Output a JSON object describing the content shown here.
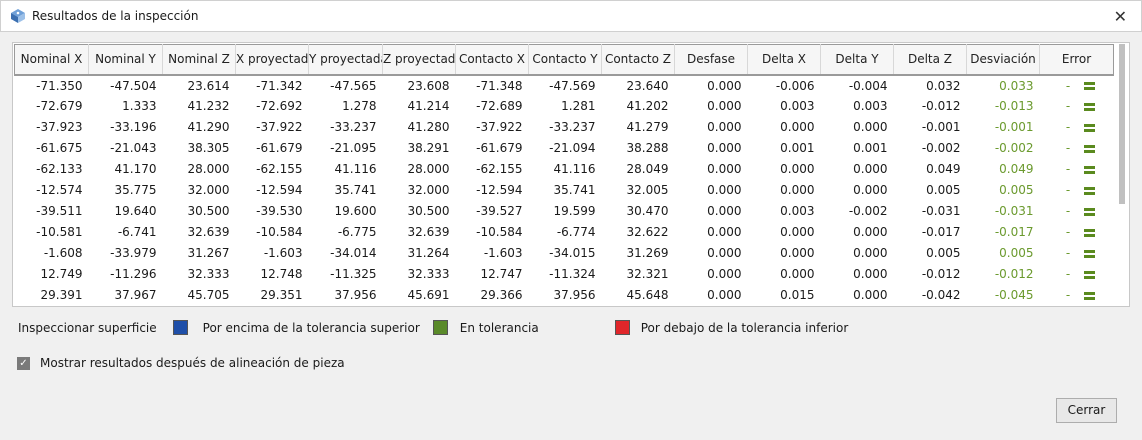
{
  "window": {
    "title": "Resultados de la inspección",
    "close": "✕"
  },
  "table": {
    "headers": [
      "Nominal X",
      "Nominal Y",
      "Nominal Z",
      "X proyectada",
      "Y proyectada",
      "Z proyectada",
      "Contacto X",
      "Contacto Y",
      "Contacto Z",
      "Desfase",
      "Delta X",
      "Delta Y",
      "Delta Z",
      "Desviación",
      "Error"
    ],
    "rows": [
      [
        "-71.350",
        "-47.504",
        "23.614",
        "-71.342",
        "-47.565",
        "23.608",
        "-71.348",
        "-47.569",
        "23.640",
        "0.000",
        "-0.006",
        "-0.004",
        "0.032",
        "0.033",
        "-"
      ],
      [
        "-72.679",
        "1.333",
        "41.232",
        "-72.692",
        "1.278",
        "41.214",
        "-72.689",
        "1.281",
        "41.202",
        "0.000",
        "0.003",
        "0.003",
        "-0.012",
        "-0.013",
        "-"
      ],
      [
        "-37.923",
        "-33.196",
        "41.290",
        "-37.922",
        "-33.237",
        "41.280",
        "-37.922",
        "-33.237",
        "41.279",
        "0.000",
        "0.000",
        "0.000",
        "-0.001",
        "-0.001",
        "-"
      ],
      [
        "-61.675",
        "-21.043",
        "38.305",
        "-61.679",
        "-21.095",
        "38.291",
        "-61.679",
        "-21.094",
        "38.288",
        "0.000",
        "0.001",
        "0.001",
        "-0.002",
        "-0.002",
        "-"
      ],
      [
        "-62.133",
        "41.170",
        "28.000",
        "-62.155",
        "41.116",
        "28.000",
        "-62.155",
        "41.116",
        "28.049",
        "0.000",
        "0.000",
        "0.000",
        "0.049",
        "0.049",
        "-"
      ],
      [
        "-12.574",
        "35.775",
        "32.000",
        "-12.594",
        "35.741",
        "32.000",
        "-12.594",
        "35.741",
        "32.005",
        "0.000",
        "0.000",
        "0.000",
        "0.005",
        "0.005",
        "-"
      ],
      [
        "-39.511",
        "19.640",
        "30.500",
        "-39.530",
        "19.600",
        "30.500",
        "-39.527",
        "19.599",
        "30.470",
        "0.000",
        "0.003",
        "-0.002",
        "-0.031",
        "-0.031",
        "-"
      ],
      [
        "-10.581",
        "-6.741",
        "32.639",
        "-10.584",
        "-6.775",
        "32.639",
        "-10.584",
        "-6.774",
        "32.622",
        "0.000",
        "0.000",
        "0.000",
        "-0.017",
        "-0.017",
        "-"
      ],
      [
        "-1.608",
        "-33.979",
        "31.267",
        "-1.603",
        "-34.014",
        "31.264",
        "-1.603",
        "-34.015",
        "31.269",
        "0.000",
        "0.000",
        "0.000",
        "0.005",
        "0.005",
        "-"
      ],
      [
        "12.749",
        "-11.296",
        "32.333",
        "12.748",
        "-11.325",
        "32.333",
        "12.747",
        "-11.324",
        "32.321",
        "0.000",
        "0.000",
        "0.000",
        "-0.012",
        "-0.012",
        "-"
      ],
      [
        "29.391",
        "37.967",
        "45.705",
        "29.351",
        "37.956",
        "45.691",
        "29.366",
        "37.956",
        "45.648",
        "0.000",
        "0.015",
        "0.000",
        "-0.042",
        "-0.045",
        "-"
      ]
    ]
  },
  "legend": {
    "label": "Inspeccionar superficie",
    "items": [
      {
        "label": "Por encima de la tolerancia superior",
        "color": "#1f4fa8"
      },
      {
        "label": "En tolerancia",
        "color": "#5a8a2a"
      },
      {
        "label": "Por debajo de la tolerancia inferior",
        "color": "#e0262a"
      }
    ]
  },
  "options": {
    "show_after_alignment": "Mostrar resultados después de alineación de pieza",
    "checked": true
  },
  "buttons": {
    "close": "Cerrar"
  }
}
